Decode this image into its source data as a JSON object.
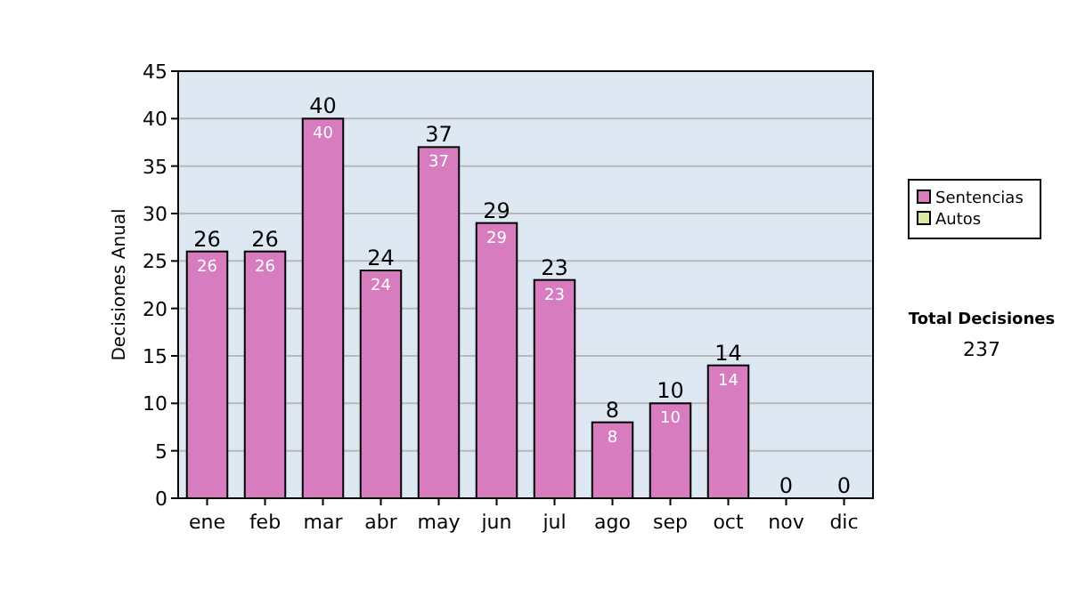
{
  "chart_data": {
    "type": "bar",
    "stacked": true,
    "ylabel": "Decisiones Anual",
    "categories": [
      "ene",
      "feb",
      "mar",
      "abr",
      "may",
      "jun",
      "jul",
      "ago",
      "sep",
      "oct",
      "nov",
      "dic"
    ],
    "series": [
      {
        "name": "Sentencias",
        "color": "#d87cc0",
        "values": [
          26,
          26,
          40,
          24,
          37,
          29,
          23,
          8,
          10,
          14,
          0,
          0
        ],
        "value_labels": [
          "26",
          "26",
          "40",
          "24",
          "37",
          "29",
          "23",
          "8",
          "10",
          "14",
          null,
          null
        ]
      },
      {
        "name": "Autos",
        "color": "#d8e8a0",
        "values": [
          0,
          0,
          0,
          0,
          0,
          0,
          0,
          0,
          0,
          0,
          0,
          0
        ]
      }
    ],
    "totals": [
      "26",
      "26",
      "40",
      "24",
      "37",
      "29",
      "23",
      "8",
      "10",
      "14",
      "0",
      "0"
    ],
    "ylim": [
      0,
      45
    ],
    "yticks": [
      0,
      5,
      10,
      15,
      20,
      25,
      30,
      35,
      40,
      45
    ],
    "grid": "y",
    "legend": "right",
    "annotations": [
      "Total Decisiones",
      "237"
    ]
  }
}
